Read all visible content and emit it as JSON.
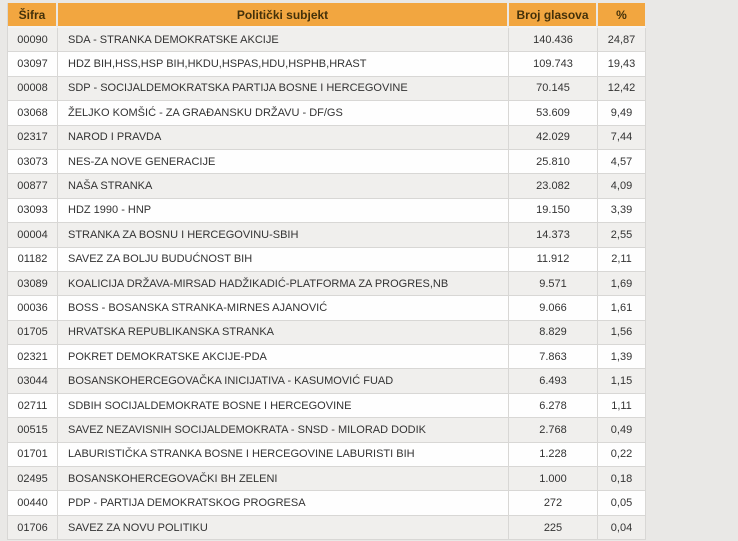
{
  "table": {
    "colors": {
      "page_background": "#e9e8e6",
      "header_background": "#f2a640",
      "header_text": "#44310a",
      "row_odd": "#f0efed",
      "row_even": "#fefefe",
      "border": "#d8d7d5",
      "body_text": "#333333"
    },
    "columns": [
      {
        "key": "sifra",
        "label": "Šifra"
      },
      {
        "key": "subjekt",
        "label": "Politički subjekt"
      },
      {
        "key": "glasovi",
        "label": "Broj glasova"
      },
      {
        "key": "pct",
        "label": "%"
      }
    ],
    "rows": [
      {
        "sifra": "00090",
        "subjekt": "SDA - STRANKA DEMOKRATSKE AKCIJE",
        "glasovi": "140.436",
        "pct": "24,87"
      },
      {
        "sifra": "03097",
        "subjekt": "HDZ BIH,HSS,HSP BIH,HKDU,HSPAS,HDU,HSPHB,HRAST",
        "glasovi": "109.743",
        "pct": "19,43"
      },
      {
        "sifra": "00008",
        "subjekt": "SDP - SOCIJALDEMOKRATSKA PARTIJA BOSNE I HERCEGOVINE",
        "glasovi": "70.145",
        "pct": "12,42"
      },
      {
        "sifra": "03068",
        "subjekt": "ŽELJKO KOMŠIĆ - ZA GRAĐANSKU DRŽAVU - DF/GS",
        "glasovi": "53.609",
        "pct": "9,49"
      },
      {
        "sifra": "02317",
        "subjekt": "NAROD I PRAVDA",
        "glasovi": "42.029",
        "pct": "7,44"
      },
      {
        "sifra": "03073",
        "subjekt": "NES-ZA NOVE GENERACIJE",
        "glasovi": "25.810",
        "pct": "4,57"
      },
      {
        "sifra": "00877",
        "subjekt": "NAŠA STRANKA",
        "glasovi": "23.082",
        "pct": "4,09"
      },
      {
        "sifra": "03093",
        "subjekt": "HDZ 1990 - HNP",
        "glasovi": "19.150",
        "pct": "3,39"
      },
      {
        "sifra": "00004",
        "subjekt": "STRANKA ZA BOSNU I HERCEGOVINU-SBIH",
        "glasovi": "14.373",
        "pct": "2,55"
      },
      {
        "sifra": "01182",
        "subjekt": "SAVEZ ZA BOLJU BUDUĆNOST BIH",
        "glasovi": "11.912",
        "pct": "2,11"
      },
      {
        "sifra": "03089",
        "subjekt": "KOALICIJA DRŽAVA-MIRSAD HADŽIKADIĆ-PLATFORMA ZA PROGRES,NB",
        "glasovi": "9.571",
        "pct": "1,69"
      },
      {
        "sifra": "00036",
        "subjekt": "BOSS - BOSANSKA STRANKA-MIRNES AJANOVIĆ",
        "glasovi": "9.066",
        "pct": "1,61"
      },
      {
        "sifra": "01705",
        "subjekt": "HRVATSKA REPUBLIKANSKA STRANKA",
        "glasovi": "8.829",
        "pct": "1,56"
      },
      {
        "sifra": "02321",
        "subjekt": "POKRET DEMOKRATSKE AKCIJE-PDA",
        "glasovi": "7.863",
        "pct": "1,39"
      },
      {
        "sifra": "03044",
        "subjekt": "BOSANSKOHERCEGOVAČKA INICIJATIVA - KASUMOVIĆ FUAD",
        "glasovi": "6.493",
        "pct": "1,15"
      },
      {
        "sifra": "02711",
        "subjekt": "SDBIH SOCIJALDEMOKRATE BOSNE I HERCEGOVINE",
        "glasovi": "6.278",
        "pct": "1,11"
      },
      {
        "sifra": "00515",
        "subjekt": "SAVEZ NEZAVISNIH SOCIJALDEMOKRATA - SNSD - MILORAD DODIK",
        "glasovi": "2.768",
        "pct": "0,49"
      },
      {
        "sifra": "01701",
        "subjekt": "LABURISTIČKA STRANKA BOSNE I HERCEGOVINE LABURISTI BIH",
        "glasovi": "1.228",
        "pct": "0,22"
      },
      {
        "sifra": "02495",
        "subjekt": "BOSANSKOHERCEGOVAČKI BH ZELENI",
        "glasovi": "1.000",
        "pct": "0,18"
      },
      {
        "sifra": "00440",
        "subjekt": "PDP - PARTIJA DEMOKRATSKOG PROGRESA",
        "glasovi": "272",
        "pct": "0,05"
      },
      {
        "sifra": "01706",
        "subjekt": "SAVEZ ZA NOVU POLITIKU",
        "glasovi": "225",
        "pct": "0,04"
      }
    ]
  }
}
